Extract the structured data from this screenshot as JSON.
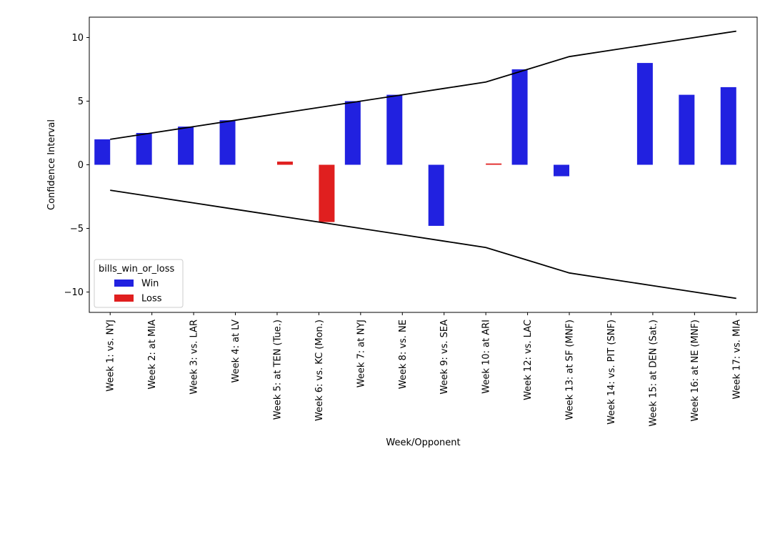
{
  "chart_data": {
    "type": "bar",
    "xlabel": "Week/Opponent",
    "ylabel": "Confidence Interval",
    "ylim": [
      -11.6,
      11.6
    ],
    "yticks": [
      -10,
      -5,
      0,
      5,
      10
    ],
    "ytick_labels": [
      "−10",
      "−5",
      "0",
      "5",
      "10"
    ],
    "grid": false,
    "categories": [
      "Week 1: vs. NYJ",
      "Week 2: at MIA",
      "Week 3: vs. LAR",
      "Week 4: at LV",
      "Week 5: at TEN (Tue.)",
      "Week 6: vs. KC (Mon.)",
      "Week 7: at NYJ",
      "Week 8: vs. NE",
      "Week 9: vs. SEA",
      "Week 10: at ARI",
      "Week 12: vs. LAC",
      "Week 13: at SF (MNF)",
      "Week 14: vs. PIT (SNF)",
      "Week 15: at DEN (Sat.)",
      "Week 16: at NE (MNF)",
      "Week 17: vs. MIA"
    ],
    "legend": {
      "title": "bills_win_or_loss",
      "placement": "lower-left",
      "entries": [
        {
          "label": "Win",
          "color": "#2121e0"
        },
        {
          "label": "Loss",
          "color": "#e01f1f"
        }
      ]
    },
    "series": [
      {
        "name": "Win",
        "color": "#2121e0",
        "offset": "left",
        "values": [
          2.0,
          2.5,
          3.0,
          3.5,
          null,
          null,
          5.0,
          5.5,
          -4.8,
          null,
          7.5,
          -0.9,
          null,
          8.0,
          5.5,
          6.1
        ]
      },
      {
        "name": "Loss",
        "color": "#e01f1f",
        "offset": "right",
        "values": [
          null,
          null,
          null,
          null,
          0.25,
          -4.5,
          null,
          null,
          null,
          0.1,
          null,
          null,
          null,
          null,
          null,
          null
        ]
      }
    ],
    "lines": [
      {
        "color": "#000000",
        "values": [
          2.0,
          2.5,
          3.0,
          3.5,
          4.0,
          4.5,
          5.0,
          5.5,
          6.0,
          6.5,
          7.5,
          8.5,
          9.0,
          9.5,
          10.0,
          10.5
        ]
      },
      {
        "color": "#000000",
        "values": [
          -2.0,
          -2.5,
          -3.0,
          -3.5,
          -4.0,
          -4.5,
          -5.0,
          -5.5,
          -6.0,
          -6.5,
          -7.5,
          -8.5,
          -9.0,
          -9.5,
          -10.0,
          -10.5
        ]
      }
    ]
  }
}
